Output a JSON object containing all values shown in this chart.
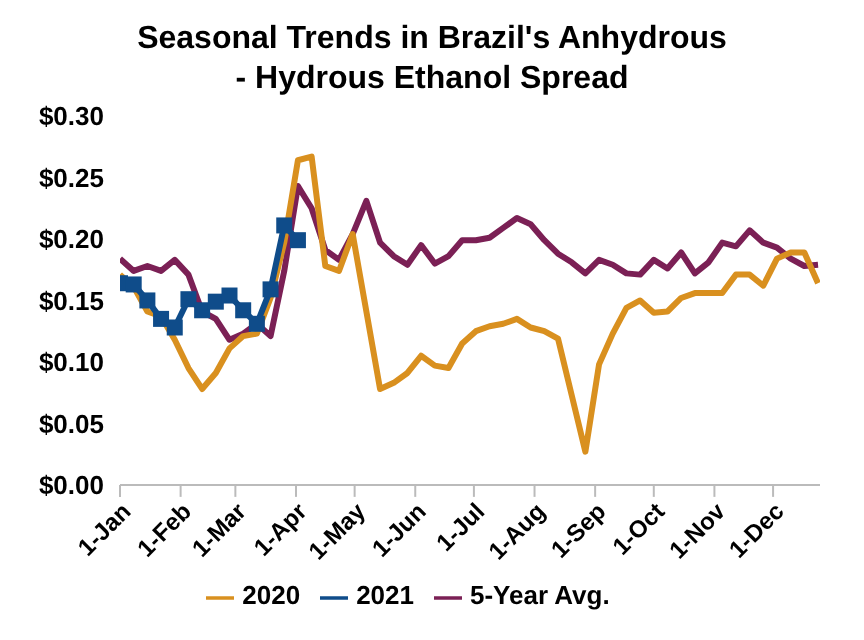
{
  "chart_data": {
    "type": "line",
    "title": "Seasonal Trends in Brazil's Anhydrous - Hydrous Ethanol Spread",
    "x": [
      "--01-01",
      "--01-08",
      "--01-15",
      "--01-22",
      "--01-29",
      "--02-05",
      "--02-12",
      "--02-19",
      "--02-26",
      "--03-05",
      "--03-12",
      "--03-19",
      "--03-26",
      "--04-02",
      "--04-09",
      "--04-16",
      "--04-23",
      "--04-30",
      "--05-07",
      "--05-14",
      "--05-21",
      "--05-28",
      "--06-04",
      "--06-11",
      "--06-18",
      "--06-25",
      "--07-02",
      "--07-09",
      "--07-16",
      "--07-23",
      "--07-30",
      "--08-06",
      "--08-13",
      "--08-20",
      "--08-27",
      "--09-03",
      "--09-10",
      "--09-17",
      "--09-24",
      "--10-01",
      "--10-08",
      "--10-15",
      "--10-22",
      "--10-29",
      "--11-05",
      "--11-12",
      "--11-19",
      "--11-26",
      "--12-03",
      "--12-10",
      "--12-17",
      "--12-24"
    ],
    "series": [
      {
        "name": "5-Year Avg.",
        "color": "#7b2055",
        "marker": "none",
        "values": [
          0.184,
          0.174,
          0.178,
          0.174,
          0.183,
          0.171,
          0.141,
          0.135,
          0.118,
          0.123,
          0.131,
          0.121,
          0.174,
          0.243,
          0.225,
          0.191,
          0.183,
          0.204,
          0.231,
          0.197,
          0.186,
          0.179,
          0.195,
          0.18,
          0.186,
          0.199,
          0.199,
          0.201,
          0.209,
          0.217,
          0.212,
          0.199,
          0.188,
          0.181,
          0.172,
          0.183,
          0.179,
          0.172,
          0.171,
          0.183,
          0.176,
          0.189,
          0.172,
          0.181,
          0.197,
          0.194,
          0.207,
          0.197,
          0.193,
          0.184,
          0.178,
          0.179
        ]
      },
      {
        "name": "2020",
        "color": "#d9901f",
        "marker": "none",
        "values": [
          0.171,
          0.161,
          0.141,
          0.137,
          0.118,
          0.095,
          0.078,
          0.091,
          0.111,
          0.121,
          0.123,
          0.152,
          0.197,
          0.264,
          0.267,
          0.178,
          0.174,
          0.204,
          0.141,
          0.078,
          0.083,
          0.091,
          0.105,
          0.097,
          0.095,
          0.115,
          0.125,
          0.129,
          0.131,
          0.135,
          0.128,
          0.125,
          0.119,
          0.073,
          0.027,
          0.098,
          0.123,
          0.144,
          0.15,
          0.14,
          0.141,
          0.152,
          0.156,
          0.156,
          0.156,
          0.171,
          0.171,
          0.162,
          0.184,
          0.189,
          0.189,
          0.164
        ]
      },
      {
        "name": "2021",
        "color": "#0f4c8a",
        "marker": "square",
        "values": [
          0.164,
          0.163,
          0.15,
          0.135,
          0.128,
          0.151,
          0.142,
          0.149,
          0.154,
          0.142,
          0.131,
          0.159,
          0.211,
          0.199,
          null,
          null,
          null,
          null,
          null,
          null,
          null,
          null,
          null,
          null,
          null,
          null,
          null,
          null,
          null,
          null,
          null,
          null,
          null,
          null,
          null,
          null,
          null,
          null,
          null,
          null,
          null,
          null,
          null,
          null,
          null,
          null,
          null,
          null,
          null,
          null,
          null,
          null
        ]
      }
    ],
    "xlim": [
      "--01-01",
      "--12-25"
    ],
    "xticks": [
      {
        "value": "--01-01",
        "label": "1-Jan"
      },
      {
        "value": "--02-01",
        "label": "1-Feb"
      },
      {
        "value": "--03-01",
        "label": "1-Mar"
      },
      {
        "value": "--04-01",
        "label": "1-Apr"
      },
      {
        "value": "--05-01",
        "label": "1-May"
      },
      {
        "value": "--06-01",
        "label": "1-Jun"
      },
      {
        "value": "--07-01",
        "label": "1-Jul"
      },
      {
        "value": "--08-01",
        "label": "1-Aug"
      },
      {
        "value": "--09-01",
        "label": "1-Sep"
      },
      {
        "value": "--10-01",
        "label": "1-Oct"
      },
      {
        "value": "--11-01",
        "label": "1-Nov"
      },
      {
        "value": "--12-01",
        "label": "1-Dec"
      }
    ],
    "ylim": [
      0,
      0.3
    ],
    "yticks": [
      {
        "value": 0,
        "label": "$0.00"
      },
      {
        "value": 0.05,
        "label": "$0.05"
      },
      {
        "value": 0.1,
        "label": "$0.10"
      },
      {
        "value": 0.15,
        "label": "$0.15"
      },
      {
        "value": 0.2,
        "label": "$0.20"
      },
      {
        "value": 0.25,
        "label": "$0.25"
      },
      {
        "value": 0.3,
        "label": "$0.30"
      }
    ],
    "grid": false,
    "legend": "bottom",
    "line_style": "solid"
  }
}
